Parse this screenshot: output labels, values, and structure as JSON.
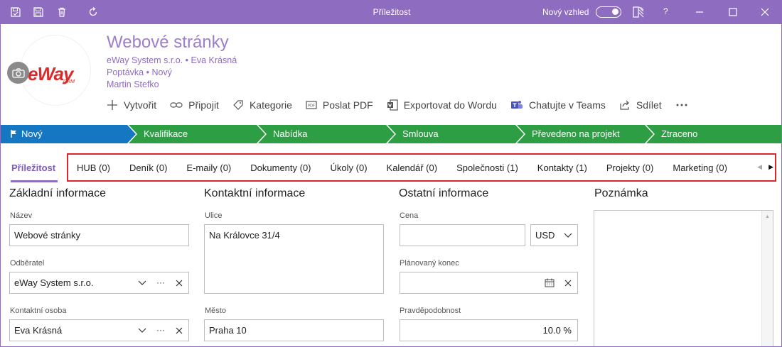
{
  "window": {
    "title": "Příležitost",
    "new_look_label": "Nový vzhled",
    "help_label": "?"
  },
  "header": {
    "record_title": "Webové stránky",
    "line1": "eWay System s.r.o. • Eva Krásná",
    "line2": "Poptávka • Nový",
    "line3": "Martin Stefko",
    "logo_text": "eWay",
    "logo_sub": "CRM"
  },
  "toolbar": [
    {
      "label": "Vytvořit",
      "icon": "plus-icon"
    },
    {
      "label": "Připojit",
      "icon": "link-icon"
    },
    {
      "label": "Kategorie",
      "icon": "tag-icon"
    },
    {
      "label": "Poslat PDF",
      "icon": "pdf-icon"
    },
    {
      "label": "Exportovat do Wordu",
      "icon": "word-icon"
    },
    {
      "label": "Chatujte v Teams",
      "icon": "teams-icon"
    },
    {
      "label": "Sdílet",
      "icon": "share-icon"
    }
  ],
  "stages": [
    {
      "label": "Nový",
      "color": "#1577c2",
      "active": true
    },
    {
      "label": "Kvalifikace",
      "color": "#2e9e45"
    },
    {
      "label": "Nabídka",
      "color": "#2e9e45"
    },
    {
      "label": "Smlouva",
      "color": "#2e9e45"
    },
    {
      "label": "Převedeno na projekt",
      "color": "#2e9e45"
    },
    {
      "label": "Ztraceno",
      "color": "#2e9e45"
    }
  ],
  "tabs": {
    "active": "Příležitost",
    "items": [
      "HUB (0)",
      "Deník (0)",
      "E-maily (0)",
      "Dokumenty (0)",
      "Úkoly (0)",
      "Kalendář (0)",
      "Společnosti (1)",
      "Kontakty (1)",
      "Projekty (0)",
      "Marketing (0)"
    ]
  },
  "sections": {
    "basic": {
      "title": "Základní informace",
      "name_label": "Název",
      "name_value": "Webové stránky",
      "customer_label": "Odběratel",
      "customer_value": "eWay System s.r.o.",
      "contact_label": "Kontaktní osoba",
      "contact_value": "Eva Krásná"
    },
    "contact": {
      "title": "Kontaktní informace",
      "street_label": "Ulice",
      "street_value": "Na Královce 31/4",
      "city_label": "Město",
      "city_value": "Praha 10"
    },
    "other": {
      "title": "Ostatní informace",
      "price_label": "Cena",
      "price_value": "",
      "currency_value": "USD",
      "end_label": "Plánovaný konec",
      "end_value": "",
      "probability_label": "Pravděpodobnost",
      "probability_value": "10.0 %"
    },
    "notes": {
      "title": "Poznámka"
    }
  },
  "colors": {
    "accent": "#8e6cc0",
    "stage_active": "#1577c2",
    "stage": "#2e9e45",
    "highlight_border": "#d9262c"
  }
}
